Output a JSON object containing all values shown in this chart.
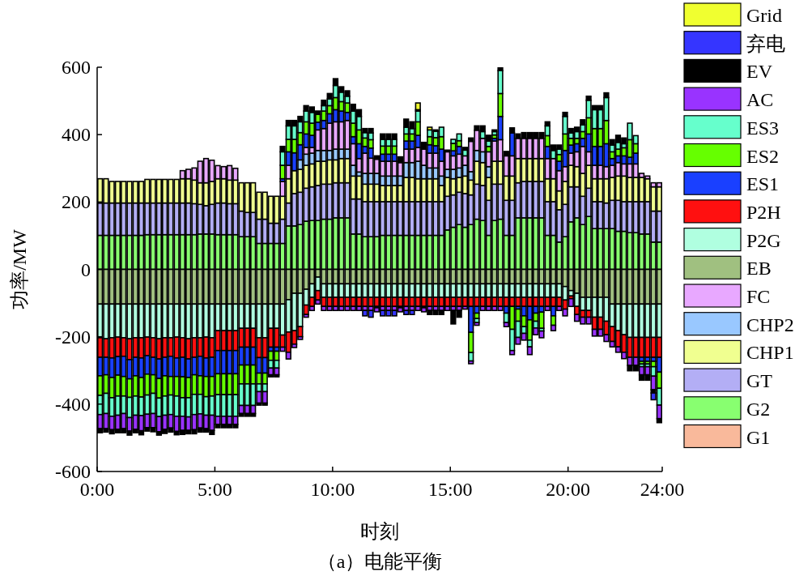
{
  "chart_data": {
    "type": "bar",
    "stacked": true,
    "xlabel": "时刻",
    "ylabel": "功率/MW",
    "annotations": [
      "（a）电能平衡"
    ],
    "legend": "right",
    "grid": false,
    "xlim": [
      0,
      24
    ],
    "xticks": [
      {
        "value": 0,
        "label": "0:00"
      },
      {
        "value": 5,
        "label": "5:00"
      },
      {
        "value": 10,
        "label": "10:00"
      },
      {
        "value": 15,
        "label": "15:00"
      },
      {
        "value": 20,
        "label": "20:00"
      },
      {
        "value": 24,
        "label": "24:00"
      }
    ],
    "ylim": [
      -600,
      600
    ],
    "yticks": [
      -600,
      -400,
      -200,
      0,
      200,
      400,
      600
    ],
    "x": [
      0.125,
      0.375,
      0.625,
      0.875,
      1.125,
      1.375,
      1.625,
      1.875,
      2.125,
      2.375,
      2.625,
      2.875,
      3.125,
      3.375,
      3.625,
      3.875,
      4.125,
      4.375,
      4.625,
      4.875,
      5.125,
      5.375,
      5.625,
      5.875,
      6.125,
      6.375,
      6.625,
      6.875,
      7.125,
      7.375,
      7.625,
      7.875,
      8.125,
      8.375,
      8.625,
      8.875,
      9.125,
      9.375,
      9.625,
      9.875,
      10.125,
      10.375,
      10.625,
      10.875,
      11.125,
      11.375,
      11.625,
      11.875,
      12.125,
      12.375,
      12.625,
      12.875,
      13.125,
      13.375,
      13.625,
      13.875,
      14.125,
      14.375,
      14.625,
      14.875,
      15.125,
      15.375,
      15.625,
      15.875,
      16.125,
      16.375,
      16.625,
      16.875,
      17.125,
      17.375,
      17.625,
      17.875,
      18.125,
      18.375,
      18.625,
      18.875,
      19.125,
      19.375,
      19.625,
      19.875,
      20.125,
      20.375,
      20.625,
      20.875,
      21.125,
      21.375,
      21.625,
      21.875,
      22.125,
      22.375,
      22.625,
      22.875,
      23.125,
      23.375,
      23.625,
      23.875
    ],
    "series": [
      {
        "name": "G1",
        "color": "#f9b99b",
        "values": [
          0,
          0,
          0,
          0,
          0,
          0,
          0,
          0,
          0,
          0,
          0,
          0,
          0,
          0,
          0,
          0,
          0,
          0,
          0,
          0,
          0,
          0,
          0,
          0,
          0,
          0,
          0,
          0,
          0,
          0,
          0,
          0,
          0,
          0,
          0,
          0,
          0,
          0,
          0,
          0,
          0,
          0,
          0,
          0,
          0,
          0,
          0,
          0,
          0,
          0,
          0,
          0,
          0,
          0,
          0,
          0,
          0,
          0,
          0,
          0,
          0,
          0,
          0,
          0,
          0,
          0,
          0,
          0,
          0,
          0,
          0,
          0,
          0,
          0,
          0,
          0,
          0,
          0,
          0,
          0,
          0,
          0,
          0,
          0,
          0,
          0,
          0,
          0,
          0,
          0,
          0,
          0,
          0,
          0,
          0,
          0
        ]
      },
      {
        "name": "G2",
        "color": "#88ff70",
        "values": [
          101,
          101,
          101,
          101,
          101,
          101,
          101,
          101,
          103,
          103,
          103,
          103,
          103,
          103,
          103,
          103,
          103,
          105,
          105,
          105,
          103,
          103,
          103,
          103,
          97,
          97,
          97,
          77,
          77,
          77,
          77,
          77,
          129,
          129,
          133,
          143,
          145,
          145,
          149,
          149,
          153,
          153,
          153,
          105,
          105,
          97,
          97,
          97,
          101,
          101,
          101,
          101,
          101,
          101,
          101,
          101,
          101,
          101,
          101,
          117,
          125,
          133,
          125,
          133,
          149,
          145,
          101,
          145,
          149,
          101,
          101,
          153,
          153,
          153,
          153,
          153,
          101,
          101,
          81,
          97,
          141,
          153,
          133,
          157,
          121,
          121,
          121,
          121,
          113,
          113,
          109,
          109,
          105,
          105,
          81,
          81
        ]
      },
      {
        "name": "GT",
        "color": "#b3aef5",
        "values": [
          96,
          96,
          96,
          96,
          96,
          96,
          96,
          96,
          94,
          94,
          94,
          94,
          94,
          94,
          94,
          94,
          92,
          88,
          84,
          88,
          94,
          94,
          92,
          92,
          76,
          72,
          72,
          72,
          72,
          60,
          60,
          72,
          68,
          96,
          96,
          98,
          100,
          104,
          104,
          104,
          104,
          104,
          104,
          104,
          104,
          104,
          104,
          104,
          100,
          100,
          100,
          100,
          100,
          100,
          100,
          100,
          100,
          100,
          100,
          100,
          96,
          96,
          100,
          88,
          104,
          104,
          104,
          108,
          104,
          104,
          104,
          104,
          108,
          108,
          108,
          108,
          100,
          100,
          96,
          96,
          104,
          92,
          84,
          84,
          80,
          80,
          76,
          84,
          92,
          88,
          92,
          92,
          96,
          96,
          92,
          92
        ]
      },
      {
        "name": "CHP1",
        "color": "#f0ff90",
        "values": [
          72,
          72,
          64,
          64,
          64,
          64,
          64,
          64,
          70,
          70,
          70,
          70,
          70,
          70,
          72,
          72,
          70,
          64,
          68,
          68,
          72,
          72,
          70,
          70,
          84,
          88,
          88,
          80,
          80,
          80,
          80,
          68,
          72,
          68,
          68,
          68,
          68,
          72,
          68,
          72,
          68,
          72,
          72,
          68,
          68,
          52,
          52,
          52,
          48,
          48,
          48,
          48,
          72,
          72,
          68,
          68,
          68,
          68,
          48,
          56,
          48,
          44,
          52,
          44,
          68,
          68,
          68,
          68,
          68,
          72,
          72,
          72,
          68,
          68,
          68,
          68,
          68,
          68,
          56,
          68,
          64,
          60,
          68,
          68,
          68,
          68,
          72,
          68,
          72,
          76,
          72,
          72,
          72,
          68,
          72,
          72
        ]
      },
      {
        "name": "CHP2",
        "color": "#99c8ff",
        "values": [
          0,
          0,
          0,
          0,
          0,
          0,
          0,
          0,
          0,
          0,
          0,
          0,
          0,
          0,
          0,
          0,
          0,
          0,
          0,
          0,
          0,
          0,
          0,
          0,
          0,
          0,
          0,
          0,
          0,
          0,
          0,
          0,
          0,
          0,
          28,
          33,
          32,
          32,
          32,
          28,
          32,
          28,
          28,
          32,
          12,
          32,
          32,
          32,
          28,
          28,
          28,
          28,
          44,
          44,
          52,
          40,
          32,
          32,
          28,
          24,
          28,
          28,
          32,
          25,
          32,
          32,
          32,
          0,
          0,
          0,
          0,
          0,
          0,
          0,
          0,
          0,
          0,
          0,
          0,
          0,
          0,
          0,
          0,
          0,
          0,
          0,
          0,
          0,
          0,
          0,
          0,
          0,
          0,
          0,
          0,
          0
        ]
      },
      {
        "name": "FC",
        "color": "#e8a8ff",
        "values": [
          0,
          0,
          0,
          0,
          0,
          0,
          0,
          0,
          0,
          0,
          0,
          0,
          0,
          0,
          24,
          28,
          36,
          64,
          72,
          63,
          39,
          36,
          43,
          35,
          0,
          0,
          0,
          0,
          0,
          0,
          0,
          44,
          40,
          0,
          0,
          20,
          17,
          61,
          65,
          81,
          81,
          81,
          85,
          64,
          40,
          60,
          45,
          42,
          44,
          44,
          44,
          40,
          40,
          40,
          41,
          48,
          44,
          44,
          44,
          52,
          40,
          41,
          28,
          90,
          60,
          40,
          44,
          60,
          64,
          60,
          60,
          60,
          60,
          60,
          60,
          60,
          60,
          60,
          60,
          44,
          36,
          44,
          80,
          40,
          40,
          40,
          36,
          36,
          40,
          36,
          40,
          40,
          12,
          8,
          12,
          12
        ]
      },
      {
        "name": "EB",
        "color": "#a0c080",
        "values": [
          -103,
          -103,
          -103,
          -103,
          -103,
          -103,
          -103,
          -103,
          -103,
          -103,
          -103,
          -103,
          -103,
          -103,
          -103,
          -103,
          -103,
          -103,
          -103,
          -103,
          -103,
          -103,
          -103,
          -103,
          -103,
          -103,
          -103,
          -103,
          -103,
          -103,
          -103,
          -103,
          -90,
          -71,
          -71,
          -59,
          -43,
          -23,
          -43,
          -43,
          -43,
          -43,
          -43,
          -43,
          -43,
          -43,
          -43,
          -43,
          -43,
          -43,
          -43,
          -43,
          -43,
          -43,
          -43,
          -43,
          -43,
          -43,
          -43,
          -43,
          -43,
          -43,
          -43,
          -43,
          -43,
          -43,
          -43,
          -43,
          -43,
          -43,
          -43,
          -43,
          -43,
          -43,
          -43,
          -43,
          -43,
          -43,
          -43,
          -51,
          -63,
          -71,
          -83,
          -83,
          -83,
          -83,
          -83,
          -103,
          -103,
          -103,
          -103,
          -103,
          -103,
          -103,
          -103,
          -103
        ]
      },
      {
        "name": "P2G",
        "color": "#b0ffe0",
        "values": [
          -100,
          -103,
          -100,
          -98,
          -100,
          -103,
          -100,
          -100,
          -98,
          -100,
          -103,
          -100,
          -100,
          -98,
          -100,
          -103,
          -100,
          -100,
          -98,
          -100,
          -79,
          -79,
          -79,
          -79,
          -72,
          -72,
          -72,
          -100,
          -100,
          -72,
          -72,
          -92,
          -96,
          -111,
          -99,
          -47,
          -40,
          -40,
          -40,
          -40,
          -40,
          -40,
          -40,
          -40,
          -40,
          -40,
          -40,
          -40,
          -40,
          -40,
          -40,
          -40,
          -40,
          -40,
          -40,
          -40,
          -40,
          -40,
          -40,
          -40,
          -40,
          -40,
          -40,
          -40,
          -40,
          -40,
          -40,
          -40,
          -40,
          -40,
          -40,
          -40,
          -40,
          -40,
          -40,
          -40,
          -40,
          -40,
          -40,
          -40,
          -16,
          -39,
          -39,
          -39,
          -59,
          -59,
          -71,
          -67,
          -79,
          -91,
          -99,
          -99,
          -99,
          -99,
          -99,
          -99
        ]
      },
      {
        "name": "P2H",
        "color": "#ff1010",
        "values": [
          -58,
          -55,
          -60,
          -58,
          -55,
          -62,
          -58,
          -60,
          -55,
          -58,
          -60,
          -58,
          -55,
          -62,
          -58,
          -60,
          -58,
          -55,
          -62,
          -58,
          -59,
          -59,
          -59,
          -59,
          -56,
          -56,
          -56,
          -59,
          -59,
          -56,
          -56,
          -36,
          -60,
          -40,
          -30,
          -28,
          -27,
          -28,
          -27,
          -27,
          -27,
          -27,
          -27,
          -27,
          -27,
          -27,
          -27,
          -27,
          -27,
          -27,
          -27,
          -27,
          -27,
          -27,
          -27,
          -27,
          -27,
          -27,
          -27,
          -27,
          -27,
          -27,
          -27,
          -27,
          -27,
          -27,
          -27,
          -27,
          -27,
          -27,
          -27,
          -27,
          -27,
          -27,
          -27,
          -27,
          -27,
          -27,
          -27,
          -27,
          -8,
          -24,
          -20,
          -20,
          -36,
          -36,
          -40,
          -44,
          -48,
          -52,
          -59,
          -59,
          -59,
          -59,
          -59,
          -59
        ]
      },
      {
        "name": "ES1",
        "color": "#1a40ff",
        "values": [
          -55,
          -52,
          -58,
          -55,
          -60,
          -57,
          -55,
          -58,
          -55,
          -52,
          -58,
          -55,
          -60,
          -55,
          -58,
          -55,
          -52,
          -58,
          -55,
          -57,
          -69,
          -69,
          -69,
          -69,
          -53,
          -53,
          -53,
          -46,
          -46,
          -12,
          -12,
          8,
          40,
          53,
          45,
          40,
          36,
          23,
          24,
          28,
          36,
          32,
          24,
          21,
          44,
          20,
          30,
          0,
          21,
          21,
          21,
          0,
          24,
          24,
          36,
          0,
          25,
          22,
          36,
          0,
          15,
          23,
          0,
          -77,
          -20,
          0,
          0,
          8,
          69,
          -20,
          68,
          -8,
          -28,
          -40,
          -20,
          -17,
          36,
          -28,
          28,
          48,
          24,
          24,
          24,
          53,
          56,
          56,
          68,
          20,
          20,
          24,
          20,
          32,
          -12,
          -12,
          -12,
          -44
        ]
      },
      {
        "name": "ES2",
        "color": "#66ff00",
        "values": [
          -58,
          -55,
          -60,
          -62,
          -58,
          -55,
          -60,
          -58,
          -62,
          -55,
          -58,
          -60,
          -55,
          -58,
          -62,
          -60,
          -58,
          -55,
          -60,
          -58,
          -62,
          -62,
          -62,
          -62,
          -56,
          -56,
          -56,
          -32,
          -32,
          -27,
          -27,
          40,
          37,
          40,
          36,
          36,
          36,
          23,
          28,
          24,
          36,
          28,
          28,
          40,
          41,
          25,
          25,
          0,
          24,
          24,
          24,
          0,
          21,
          21,
          40,
          0,
          24,
          24,
          37,
          0,
          22,
          17,
          0,
          -60,
          -16,
          0,
          16,
          10,
          68,
          0,
          -68,
          -36,
          -32,
          -60,
          -24,
          -48,
          32,
          -28,
          20,
          49,
          20,
          16,
          20,
          48,
          53,
          53,
          69,
          20,
          20,
          24,
          52,
          28,
          -8,
          -8,
          -16,
          -48
        ]
      },
      {
        "name": "ES3",
        "color": "#66ffcc",
        "values": [
          -57,
          -60,
          -55,
          -57,
          -52,
          -60,
          -57,
          -55,
          -57,
          -60,
          -55,
          -57,
          -58,
          -60,
          -55,
          -57,
          -60,
          -58,
          -55,
          -57,
          -64,
          -64,
          -64,
          -64,
          -64,
          -64,
          -64,
          -23,
          -23,
          -23,
          -23,
          40,
          40,
          40,
          32,
          32,
          32,
          0,
          16,
          20,
          36,
          28,
          20,
          36,
          40,
          16,
          20,
          -4,
          20,
          20,
          20,
          -4,
          20,
          16,
          32,
          -4,
          20,
          19,
          28,
          0,
          12,
          20,
          17,
          -25,
          -12,
          20,
          16,
          10,
          68,
          -28,
          -63,
          -48,
          -20,
          -20,
          -20,
          -8,
          29,
          24,
          16,
          52,
          16,
          20,
          20,
          52,
          56,
          56,
          68,
          20,
          20,
          12,
          49,
          24,
          -8,
          -8,
          -28,
          -50
        ]
      },
      {
        "name": "AC",
        "color": "#9933ff",
        "values": [
          -42,
          -45,
          -40,
          -42,
          -45,
          -40,
          -42,
          -45,
          -40,
          -42,
          -45,
          -42,
          -40,
          -45,
          -42,
          -40,
          -45,
          -42,
          -40,
          -45,
          -24,
          -24,
          -24,
          -24,
          -24,
          -24,
          -24,
          -34,
          -34,
          -20,
          -20,
          -12,
          -20,
          -10,
          -8,
          -8,
          -12,
          -12,
          -12,
          -12,
          -12,
          -12,
          -12,
          -12,
          -12,
          -12,
          -12,
          -12,
          -12,
          -12,
          -12,
          -12,
          -12,
          -12,
          -12,
          -12,
          -12,
          -12,
          -12,
          -12,
          -12,
          -12,
          -8,
          -8,
          -8,
          -12,
          -12,
          -12,
          -12,
          -12,
          -12,
          -20,
          -20,
          -23,
          -20,
          -20,
          -12,
          -16,
          -12,
          -20,
          -23,
          -20,
          -20,
          -20,
          -20,
          -20,
          -20,
          -16,
          -16,
          -19,
          -24,
          -24,
          -24,
          -24,
          -40,
          -40
        ]
      },
      {
        "name": "EV",
        "color": "#000000",
        "values": [
          -12,
          -10,
          -12,
          -10,
          -12,
          -12,
          -10,
          -12,
          -10,
          -12,
          -10,
          -12,
          -12,
          -10,
          -12,
          -10,
          -12,
          -12,
          -10,
          -12,
          -10,
          -10,
          -10,
          -10,
          -8,
          -8,
          -8,
          -6,
          -6,
          -6,
          -6,
          16,
          16,
          16,
          16,
          16,
          16,
          10,
          16,
          16,
          20,
          16,
          16,
          20,
          20,
          12,
          13,
          10,
          16,
          16,
          16,
          17,
          24,
          20,
          4,
          20,
          -12,
          -12,
          -12,
          5,
          -40,
          -20,
          8,
          10,
          13,
          17,
          17,
          5,
          8,
          13,
          15,
          13,
          17,
          17,
          17,
          17,
          12,
          16,
          12,
          12,
          13,
          13,
          15,
          12,
          12,
          12,
          14,
          16,
          21,
          17,
          -16,
          -16,
          -16,
          -16,
          -10,
          -12
        ]
      },
      {
        "name": "弃电",
        "color": "#3535ff",
        "values": [
          0,
          0,
          0,
          0,
          0,
          0,
          0,
          0,
          0,
          0,
          0,
          0,
          0,
          0,
          0,
          0,
          0,
          0,
          0,
          0,
          0,
          0,
          0,
          0,
          0,
          0,
          0,
          0,
          0,
          0,
          0,
          0,
          0,
          0,
          0,
          0,
          0,
          0,
          0,
          0,
          0,
          0,
          0,
          0,
          0,
          -16,
          -20,
          0,
          -16,
          -16,
          -16,
          0,
          -12,
          -12,
          0,
          0,
          0,
          0,
          0,
          0,
          0,
          0,
          0,
          0,
          0,
          0,
          0,
          0,
          0,
          0,
          0,
          0,
          0,
          0,
          0,
          0,
          0,
          0,
          0,
          0,
          0,
          0,
          0,
          0,
          0,
          0,
          0,
          0,
          0,
          0,
          0,
          0,
          0,
          0,
          -20,
          0
        ]
      },
      {
        "name": "Grid",
        "color": "#f0ff30",
        "values": [
          0,
          0,
          0,
          0,
          0,
          0,
          0,
          0,
          0,
          0,
          0,
          0,
          0,
          0,
          0,
          0,
          0,
          0,
          0,
          0,
          0,
          0,
          0,
          0,
          0,
          0,
          0,
          0,
          0,
          0,
          0,
          0,
          0,
          0,
          0,
          0,
          0,
          0,
          0,
          0,
          0,
          0,
          0,
          0,
          0,
          0,
          0,
          0,
          0,
          0,
          0,
          0,
          0,
          0,
          20,
          0,
          8,
          4,
          0,
          0,
          0,
          0,
          0,
          0,
          0,
          0,
          0,
          0,
          0,
          0,
          0,
          0,
          0,
          0,
          0,
          0,
          0,
          0,
          0,
          0,
          0,
          0,
          0,
          0,
          0,
          0,
          0,
          0,
          0,
          0,
          0,
          0,
          0,
          0,
          0,
          0
        ]
      }
    ]
  }
}
